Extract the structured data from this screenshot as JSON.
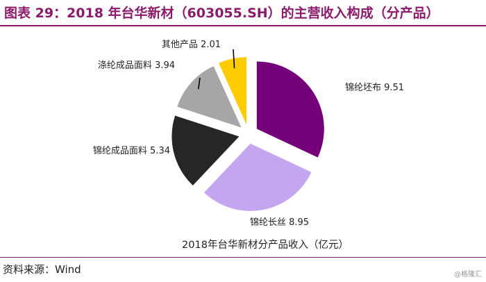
{
  "header": {
    "title": "图表 29：2018 年台华新材（603055.SH）的主营收入构成（分产品）"
  },
  "chart_data": {
    "type": "pie",
    "title": "2018年台华新材分产品收入（亿元）",
    "unit": "亿元",
    "exploded": true,
    "legend": "none",
    "slices": [
      {
        "label": "锦纶坯布",
        "value": 9.51,
        "color": "#74007a"
      },
      {
        "label": "锦纶长丝",
        "value": 8.95,
        "color": "#c3a5f0"
      },
      {
        "label": "锦纶成品面料",
        "value": 5.34,
        "color": "#262626"
      },
      {
        "label": "涤纶成品面料",
        "value": 3.94,
        "color": "#a6a6a6"
      },
      {
        "label": "其他产品",
        "value": 2.01,
        "color": "#ffcc00"
      }
    ]
  },
  "footer": {
    "source": "资料来源：Wind",
    "watermark": "@格隆汇"
  }
}
